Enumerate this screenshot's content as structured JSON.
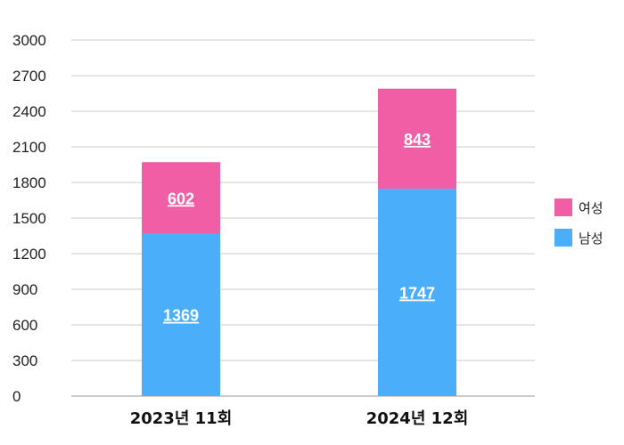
{
  "chart_data": {
    "type": "bar",
    "stacked": true,
    "categories": [
      "2023년 11회",
      "2024년 12회"
    ],
    "series": [
      {
        "name": "남성",
        "values": [
          1369,
          1747
        ],
        "color": "#4aaefb"
      },
      {
        "name": "여성",
        "values": [
          602,
          843
        ],
        "color": "#f05fa5"
      }
    ],
    "ylim": [
      0,
      3000
    ],
    "yticks": [
      0,
      300,
      600,
      900,
      1200,
      1500,
      1800,
      2100,
      2400,
      2700,
      3000
    ],
    "grid": true,
    "legend_position": "right"
  },
  "legend": [
    {
      "label": "여성",
      "color": "#f05fa5"
    },
    {
      "label": "남성",
      "color": "#4aaefb"
    }
  ]
}
